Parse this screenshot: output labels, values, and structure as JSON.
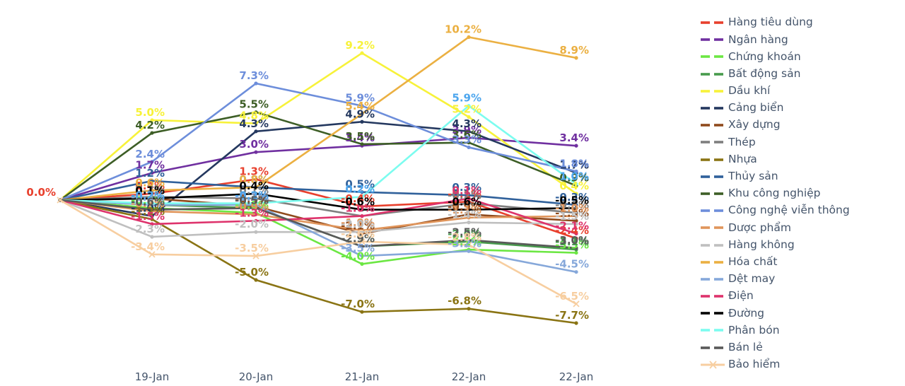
{
  "chart_data": {
    "type": "line",
    "title": "",
    "xlabel": "",
    "ylabel": "",
    "grid": false,
    "legend_position": "right",
    "value_format": "percent_one_decimal",
    "start_point_label": "0.0%",
    "x_tick_labels": [
      "19-Jan",
      "20-Jan",
      "21-Jan",
      "22-Jan",
      "22-Jan"
    ],
    "ylim": [
      -8.8,
      11.5
    ],
    "series": [
      {
        "name": "Hàng tiêu dùng",
        "color": "#E8402D",
        "marker": "circle",
        "values": [
          0.0,
          0.4,
          1.3,
          -0.4,
          -0.1,
          -2.4
        ]
      },
      {
        "name": "Ngân hàng",
        "color": "#7030A0",
        "marker": "circle",
        "values": [
          0.0,
          1.7,
          3.0,
          3.4,
          3.9,
          3.4
        ]
      },
      {
        "name": "Chứng khoán",
        "color": "#6CE743",
        "marker": "circle",
        "values": [
          0.0,
          -0.5,
          -0.8,
          -4.0,
          -3.1,
          -3.3
        ]
      },
      {
        "name": "Bất động sản",
        "color": "#479B4C",
        "marker": "circle",
        "values": [
          0.0,
          -0.3,
          -0.5,
          -2.9,
          -2.6,
          -3.1
        ]
      },
      {
        "name": "Dầu khí",
        "color": "#F7F23A",
        "marker": "circle",
        "values": [
          0.0,
          5.0,
          4.8,
          9.2,
          5.2,
          0.4
        ]
      },
      {
        "name": "Cảng biển",
        "color": "#24385F",
        "marker": "circle",
        "values": [
          0.0,
          -1.0,
          4.3,
          4.9,
          4.3,
          1.7
        ]
      },
      {
        "name": "Xây dựng",
        "color": "#8F4A1C",
        "marker": "circle",
        "values": [
          0.0,
          0.1,
          -0.4,
          -2.1,
          -0.9,
          -1.3
        ]
      },
      {
        "name": "Thép",
        "color": "#7F7F7F",
        "marker": "circle",
        "values": [
          0.0,
          0.2,
          0.1,
          -1.0,
          -0.2,
          -0.8
        ]
      },
      {
        "name": "Nhựa",
        "color": "#8A7414",
        "marker": "circle",
        "values": [
          0.0,
          -1.2,
          -5.0,
          -7.0,
          -6.8,
          -7.7
        ]
      },
      {
        "name": "Thủy sản",
        "color": "#30619B",
        "marker": "circle",
        "values": [
          0.0,
          1.2,
          0.8,
          0.5,
          0.3,
          -0.3
        ]
      },
      {
        "name": "Khu công nghiệp",
        "color": "#3D5E26",
        "marker": "circle",
        "values": [
          0.0,
          4.2,
          5.5,
          3.5,
          3.6,
          0.9
        ]
      },
      {
        "name": "Công nghệ viễn thông",
        "color": "#6D8EDB",
        "marker": "circle",
        "values": [
          0.0,
          2.4,
          7.3,
          5.9,
          3.3,
          1.8
        ]
      },
      {
        "name": "Dược phẩm",
        "color": "#E0955B",
        "marker": "circle",
        "values": [
          0.0,
          -0.7,
          -0.9,
          -1.9,
          -1.1,
          -1.0
        ]
      },
      {
        "name": "Hàng không",
        "color": "#BFBFBF",
        "marker": "circle",
        "values": [
          0.0,
          -2.3,
          -2.0,
          -2.0,
          -1.4,
          -1.5
        ]
      },
      {
        "name": "Hóa chất",
        "color": "#EBB042",
        "marker": "circle",
        "values": [
          0.0,
          0.6,
          0.8,
          5.4,
          10.2,
          8.9
        ]
      },
      {
        "name": "Dệt may",
        "color": "#86A8DA",
        "marker": "circle",
        "values": [
          0.0,
          -0.3,
          -0.3,
          -3.5,
          -3.2,
          -4.5
        ]
      },
      {
        "name": "Điện",
        "color": "#DE336C",
        "marker": "circle",
        "values": [
          0.0,
          -1.5,
          -1.3,
          -1.0,
          0.1,
          -2.1
        ]
      },
      {
        "name": "Đường",
        "color": "#000000",
        "marker": "circle",
        "values": [
          0.0,
          0.1,
          0.4,
          -0.6,
          -0.6,
          -0.5
        ]
      },
      {
        "name": "Phân bón",
        "color": "#7CFCEF",
        "label_color": "#4DA6EE",
        "marker": "circle",
        "values": [
          0.0,
          -0.2,
          -0.2,
          0.2,
          5.9,
          1.0
        ]
      },
      {
        "name": "Bán lẻ",
        "color": "#595959",
        "marker": "circle",
        "values": [
          0.0,
          -0.6,
          -0.5,
          -2.9,
          -2.5,
          -3.0
        ]
      },
      {
        "name": "Bảo hiểm",
        "color": "#F7CEA0",
        "marker": "x",
        "values": [
          0.0,
          -3.4,
          -3.5,
          -2.6,
          -2.8,
          -6.5
        ]
      }
    ]
  }
}
